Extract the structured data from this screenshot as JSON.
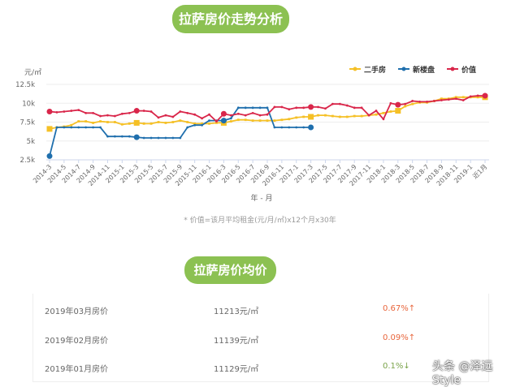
{
  "title": "拉萨房价走势分析",
  "footnote": "* 价值=该月平均租金(元/月/㎡)x12个月x30年",
  "section2_title": "拉萨房价均价",
  "price_rows": [
    {
      "label": "2019年03月房价",
      "price": "11213元/㎡",
      "change": "0.67%↑",
      "direction": "up"
    },
    {
      "label": "2019年02月房价",
      "price": "11139元/㎡",
      "change": "0.09%↑",
      "direction": "up"
    },
    {
      "label": "2019年01月房价",
      "price": "11129元/㎡",
      "change": "0.1%↓",
      "direction": "down"
    }
  ],
  "watermark": "头条 @泽远Style",
  "chart_data": {
    "type": "line",
    "ylabel": "元/㎡",
    "xlabel": "年 - 月",
    "ylim": [
      2500,
      12500
    ],
    "yticks": [
      "2.5k",
      "5k",
      "7.5k",
      "10k",
      "12.5k"
    ],
    "ytick_values": [
      2500,
      5000,
      7500,
      10000,
      12500
    ],
    "grid": true,
    "legend_placement": "top-right",
    "xtick_labels": [
      "2014-3",
      "2014-5",
      "2014-7",
      "2014-9",
      "2014-11",
      "2015-1",
      "2015-3",
      "2015-5",
      "2015-7",
      "2015-9",
      "2015-11",
      "2016-1",
      "2016-3",
      "2016-5",
      "2016-7",
      "2016-9",
      "2016-11",
      "2017-1",
      "2017-3",
      "2017-5",
      "2017-7",
      "2017-9",
      "2017-11",
      "2018-1",
      "2018-3",
      "2018-5",
      "2018-7",
      "2018-9",
      "2018-11",
      "2019-1",
      "近1月"
    ],
    "series": [
      {
        "name": "二手房",
        "color": "#f5c026",
        "values": [
          6600,
          6800,
          6900,
          7100,
          7600,
          7600,
          7400,
          7600,
          7500,
          7500,
          7200,
          7300,
          7400,
          7300,
          7300,
          7500,
          7400,
          7500,
          7700,
          7500,
          7300,
          7300,
          7300,
          7400,
          7400,
          7600,
          7800,
          7800,
          7700,
          7700,
          7700,
          7700,
          7800,
          7900,
          8100,
          8200,
          8200,
          8400,
          8400,
          8300,
          8200,
          8200,
          8300,
          8300,
          8400,
          8500,
          8700,
          8900,
          9000,
          9600,
          9900,
          10100,
          10100,
          10300,
          10600,
          10600,
          10800,
          10800,
          10800,
          10800,
          10800
        ]
      },
      {
        "name": "新楼盘",
        "color": "#1f6fad",
        "values": [
          3000,
          6800,
          6800,
          6800,
          6800,
          6800,
          6800,
          6800,
          5600,
          5600,
          5600,
          5600,
          5500,
          5400,
          5400,
          5400,
          5400,
          5400,
          5400,
          6800,
          7100,
          7100,
          7700,
          7700,
          7700,
          8000,
          9400,
          9400,
          9400,
          9400,
          9400,
          6800,
          6800,
          6800,
          6800,
          6800,
          6800,
          null,
          null,
          null,
          null,
          null,
          null,
          null,
          null,
          null,
          null,
          null,
          null,
          null,
          null,
          null,
          null,
          null,
          null,
          null,
          null,
          null,
          null,
          null,
          null
        ]
      },
      {
        "name": "价值",
        "color": "#d9264a",
        "values": [
          8900,
          8800,
          8900,
          9000,
          9100,
          8700,
          8700,
          8300,
          8400,
          8300,
          8600,
          8700,
          9000,
          9000,
          8900,
          8100,
          8400,
          8200,
          8900,
          8700,
          8500,
          8000,
          8500,
          7600,
          8600,
          8400,
          8600,
          8400,
          8700,
          8400,
          8500,
          9500,
          9500,
          9200,
          9400,
          9400,
          9500,
          9500,
          9300,
          9900,
          9900,
          9700,
          9400,
          9400,
          8400,
          9000,
          7900,
          10000,
          9800,
          9900,
          10300,
          10200,
          10200,
          10300,
          10400,
          10500,
          10600,
          10400,
          10900,
          11000,
          11000
        ]
      }
    ]
  }
}
